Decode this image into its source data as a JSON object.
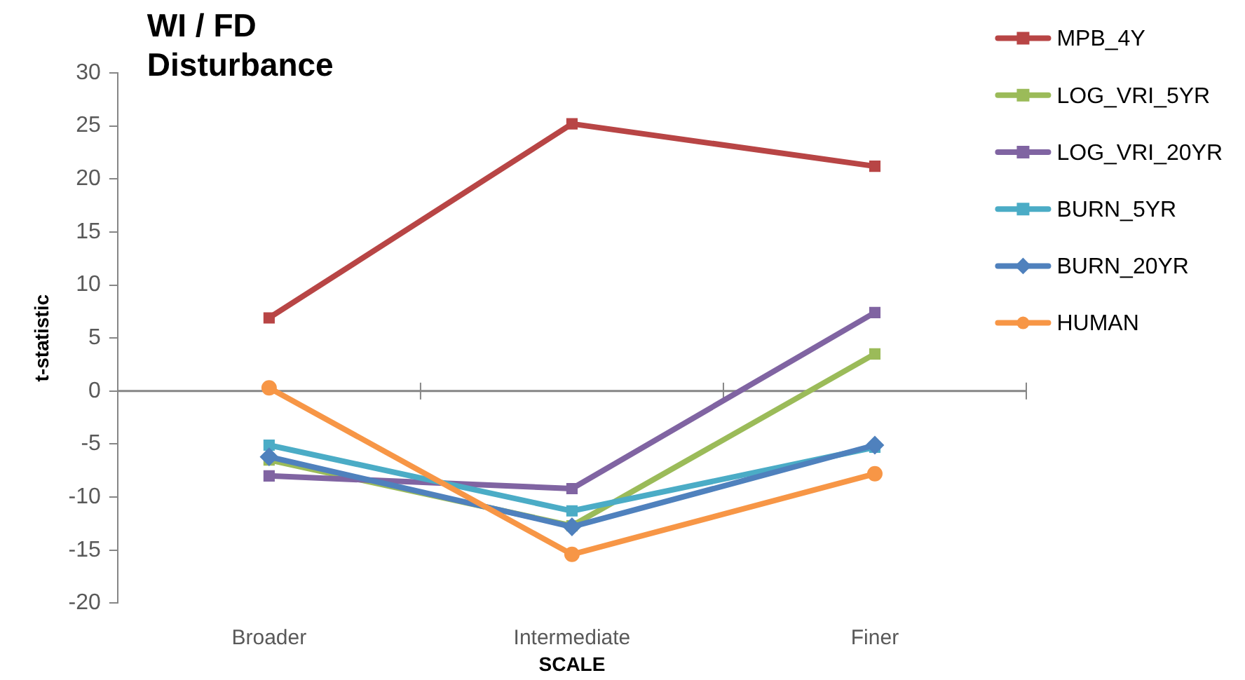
{
  "chart_data": {
    "type": "line",
    "title": "WI / FD Disturbance",
    "xlabel": "SCALE",
    "ylabel": "t-statistic",
    "categories": [
      "Broader",
      "Intermediate",
      "Finer"
    ],
    "series": [
      {
        "name": "MPB_4Y",
        "color": "#b84545",
        "marker": "square",
        "values": [
          6.9,
          25.2,
          21.2
        ]
      },
      {
        "name": "LOG_VRI_5YR",
        "color": "#9bbb59",
        "marker": "square",
        "values": [
          -6.5,
          -12.7,
          3.5
        ]
      },
      {
        "name": "LOG_VRI_20YR",
        "color": "#8064a2",
        "marker": "square",
        "values": [
          -8.0,
          -9.2,
          7.4
        ]
      },
      {
        "name": "BURN_5YR",
        "color": "#4bacc6",
        "marker": "square",
        "values": [
          -5.1,
          -11.3,
          -5.3
        ]
      },
      {
        "name": "BURN_20YR",
        "color": "#4f81bd",
        "marker": "diamond",
        "values": [
          -6.2,
          -12.8,
          -5.1
        ]
      },
      {
        "name": "HUMAN",
        "color": "#f79646",
        "marker": "circle",
        "values": [
          0.3,
          -15.4,
          -7.8
        ]
      }
    ],
    "ylim": [
      -20,
      30
    ],
    "yticks": [
      -20,
      -15,
      -10,
      -5,
      0,
      5,
      10,
      15,
      20,
      25,
      30
    ],
    "ref_lines": [
      {
        "axis": "y",
        "value": 0,
        "color": "#868686"
      }
    ],
    "grid": false,
    "legend": "top right",
    "line_style": "solid"
  }
}
